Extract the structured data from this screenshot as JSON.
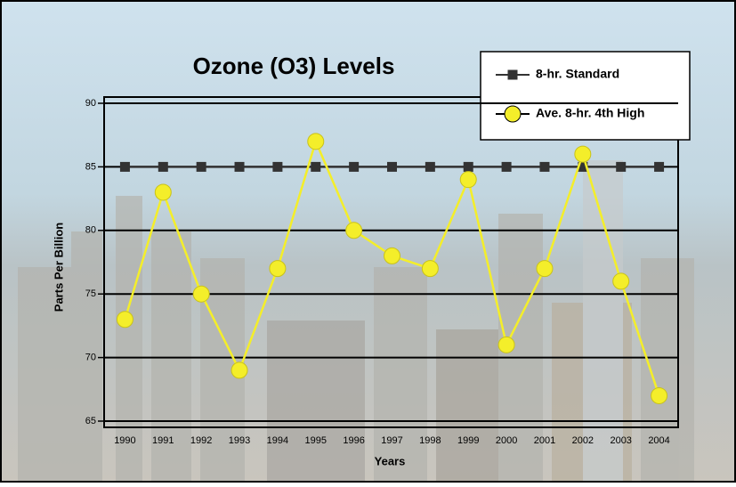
{
  "chart_data": {
    "type": "line",
    "title": "Ozone (O3) Levels",
    "x_label": "Years",
    "y_label": "Parts Per Billion",
    "categories": [
      "1990",
      "1991",
      "1992",
      "1993",
      "1994",
      "1995",
      "1996",
      "1997",
      "1998",
      "1999",
      "2000",
      "2001",
      "2002",
      "2003",
      "2004"
    ],
    "series": [
      {
        "name": "8-hr. Standard",
        "color": "#333333",
        "marker": "square",
        "values": [
          85,
          85,
          85,
          85,
          85,
          85,
          85,
          85,
          85,
          85,
          85,
          85,
          85,
          85,
          85
        ]
      },
      {
        "name": "Ave. 8-hr. 4th High",
        "color": "#f4ee2a",
        "marker": "circle",
        "values": [
          73,
          83,
          75,
          69,
          77,
          87,
          80,
          78,
          77,
          84,
          71,
          77,
          86,
          76,
          67
        ]
      }
    ],
    "ylim": [
      65,
      90
    ],
    "yticks": [
      65,
      70,
      75,
      80,
      85,
      90
    ],
    "grid": true,
    "legend": "top-right"
  }
}
